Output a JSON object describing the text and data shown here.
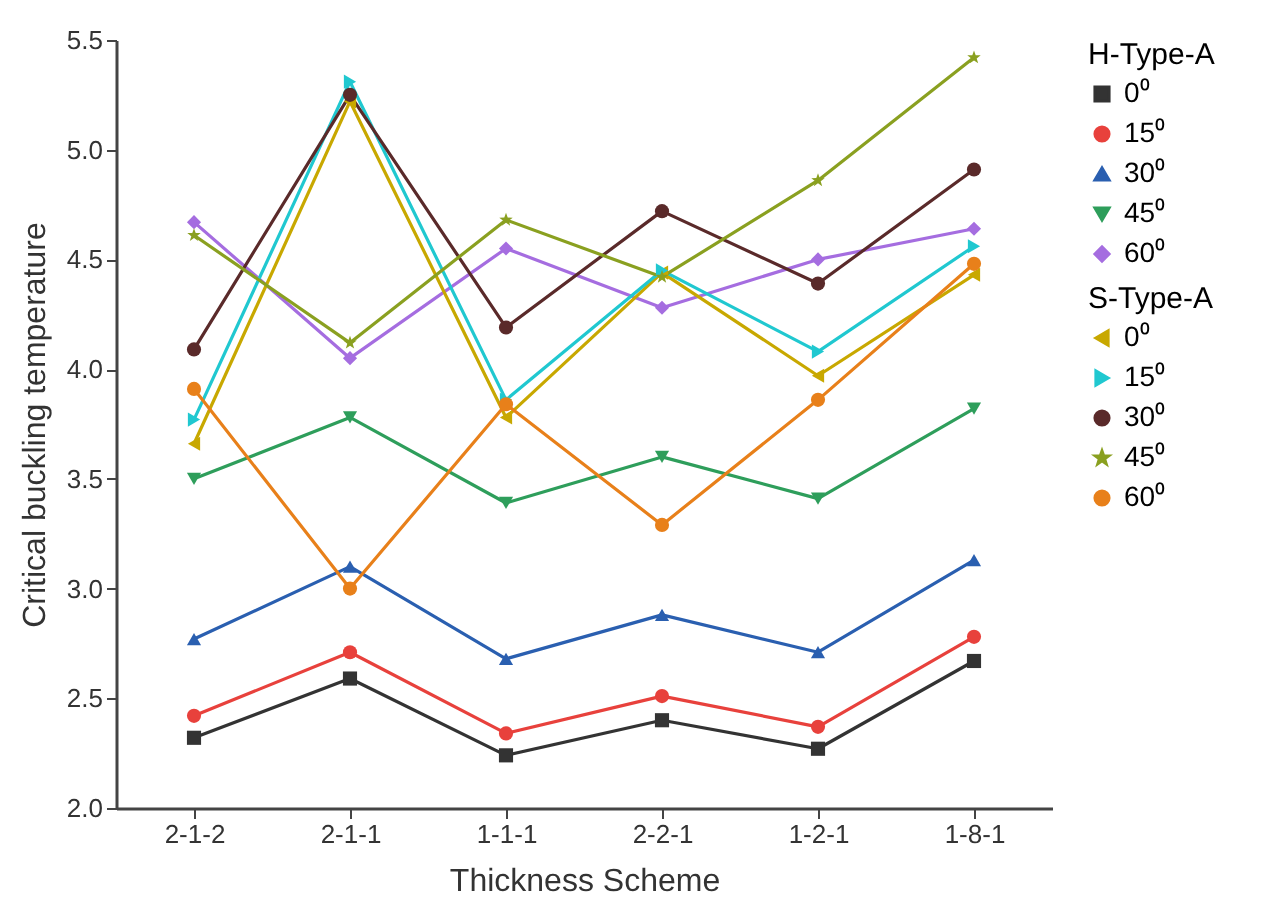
{
  "chart_data": {
    "type": "line",
    "xlabel": "Thickness Scheme",
    "ylabel": "Critical buckling temperature",
    "categories": [
      "2-1-2",
      "2-1-1",
      "1-1-1",
      "2-2-1",
      "1-2-1",
      "1-8-1"
    ],
    "ylim": [
      2.0,
      5.5
    ],
    "yticks": [
      {
        "value": 2,
        "label": "2.0"
      },
      2.5,
      {
        "value": 3,
        "label": "3.0"
      },
      3.5,
      {
        "value": 4,
        "label": "4.0"
      },
      4.5,
      {
        "value": 5,
        "label": "5.0"
      },
      5.5
    ],
    "grid": false,
    "legend": "right",
    "legend_title": [
      "H-Type-A",
      "S-Type-A"
    ],
    "series": [
      {
        "name": "0⁰",
        "marker": "square",
        "color": "#333333",
        "values": [
          2.32,
          2.59,
          2.24,
          2.4,
          2.27,
          2.67
        ]
      },
      {
        "name": "15⁰",
        "marker": "circle",
        "color": "#e8413c",
        "values": [
          2.42,
          2.71,
          2.34,
          2.51,
          2.37,
          2.78
        ]
      },
      {
        "name": "30⁰",
        "marker": "triangle",
        "color": "#2a5fb0",
        "values": [
          2.77,
          3.1,
          2.68,
          2.88,
          2.71,
          3.13
        ]
      },
      {
        "name": "45⁰",
        "marker": "triangle-down",
        "color": "#2e9e5b",
        "values": [
          3.5,
          3.78,
          3.39,
          3.6,
          3.41,
          3.82
        ]
      },
      {
        "name": "60⁰",
        "marker": "diamond",
        "color": "#a56de0",
        "values": [
          4.67,
          4.05,
          4.55,
          4.28,
          4.5,
          4.64
        ]
      },
      {
        "name": "0⁰",
        "marker": "triangle-left",
        "color": "#c8a800",
        "values": [
          3.66,
          5.22,
          3.78,
          4.44,
          3.97,
          4.43
        ]
      },
      {
        "name": "15⁰",
        "marker": "triangle-right",
        "color": "#20c8d0",
        "values": [
          3.77,
          5.31,
          3.86,
          4.45,
          4.08,
          4.56
        ]
      },
      {
        "name": "30⁰",
        "marker": "circle",
        "color": "#5a2a2a",
        "values": [
          4.09,
          5.25,
          4.19,
          4.72,
          4.39,
          4.91
        ]
      },
      {
        "name": "45⁰",
        "marker": "star",
        "color": "#8aa020",
        "values": [
          4.61,
          4.12,
          4.68,
          4.42,
          4.86,
          5.42
        ]
      },
      {
        "name": "60⁰",
        "marker": "circle",
        "color": "#e8801a",
        "values": [
          3.91,
          3.0,
          3.84,
          3.29,
          3.86,
          4.48
        ]
      }
    ]
  }
}
